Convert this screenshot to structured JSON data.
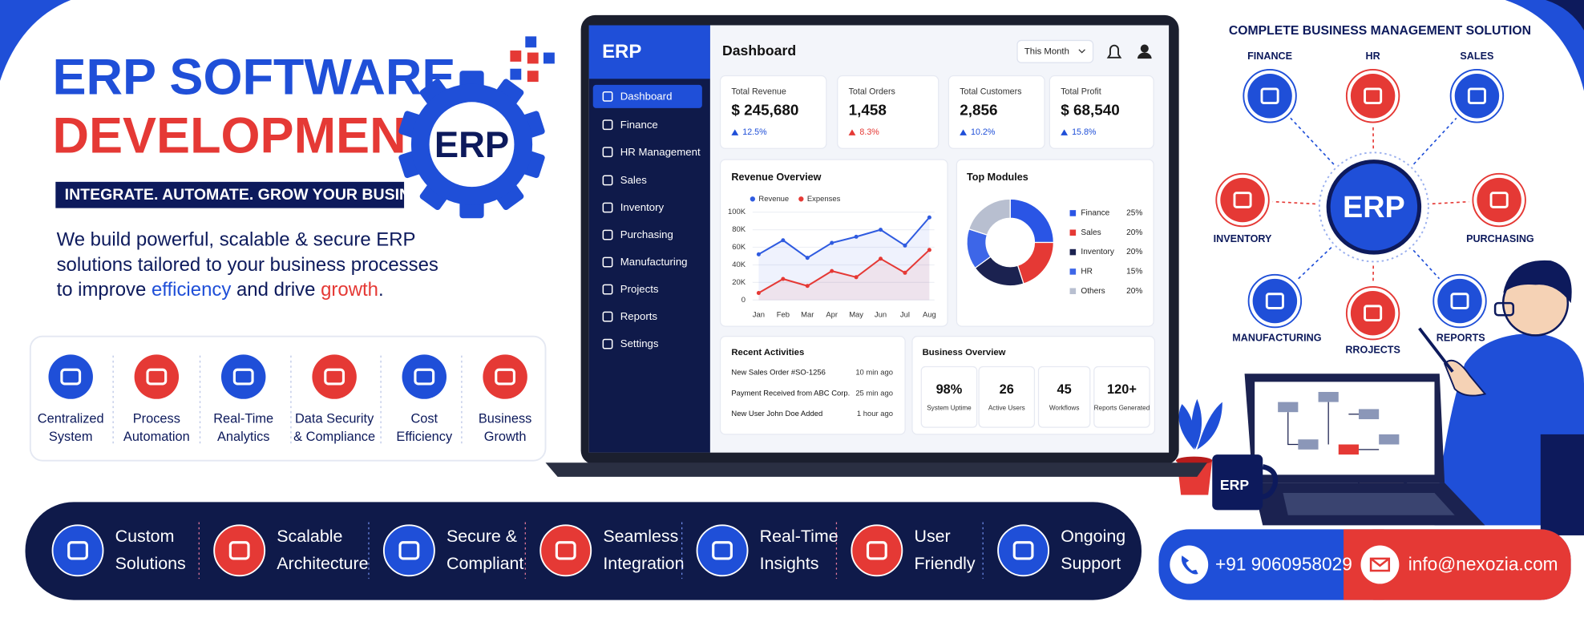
{
  "hero": {
    "title_line1": "ERP SOFTWARE",
    "title_line2": "DEVELOPMENT",
    "tagline": "INTEGRATE. AUTOMATE. GROW YOUR BUSINESS.",
    "logo": "ERP",
    "description": [
      "We build powerful, scalable & secure ERP",
      "solutions tailored to your business processes"
    ],
    "description_last": [
      "to improve ",
      "efficiency",
      " and drive ",
      "growth",
      "."
    ]
  },
  "features": [
    {
      "line1": "Centralized",
      "line2": "System"
    },
    {
      "line1": "Process",
      "line2": "Automation"
    },
    {
      "line1": "Real-Time",
      "line2": "Analytics"
    },
    {
      "line1": "Data Security",
      "line2": "& Compliance"
    },
    {
      "line1": "Cost",
      "line2": "Efficiency"
    },
    {
      "line1": "Business",
      "line2": "Growth"
    }
  ],
  "dashboard": {
    "brand": "ERP",
    "menu": [
      "Dashboard",
      "Finance",
      "HR Management",
      "Sales",
      "Inventory",
      "Purchasing",
      "Manufacturing",
      "Projects",
      "Reports",
      "Settings"
    ],
    "header": "Dashboard",
    "period": "This Month",
    "kpis": [
      {
        "label": "Total Revenue",
        "value": "$ 245,680",
        "change": "12.5%"
      },
      {
        "label": "Total Orders",
        "value": "1,458",
        "change": "8.3%"
      },
      {
        "label": "Total Customers",
        "value": "2,856",
        "change": "10.2%"
      },
      {
        "label": "Total Profit",
        "value": "$ 68,540",
        "change": "15.8%"
      }
    ],
    "revenue_overview": {
      "title": "Revenue Overview",
      "categories": [
        "Jan",
        "Feb",
        "Mar",
        "Apr",
        "May",
        "Jun",
        "Jul",
        "Aug"
      ],
      "series": [
        {
          "name": "Revenue",
          "color": "#2f5be0",
          "values": [
            52,
            68,
            48,
            65,
            72,
            80,
            62,
            94
          ]
        },
        {
          "name": "Expenses",
          "color": "#e53935",
          "values": [
            8,
            24,
            16,
            33,
            26,
            47,
            31,
            57
          ]
        }
      ],
      "ylim": [
        0,
        100
      ],
      "yticks": [
        0,
        {
          "value": 20,
          "label": "20K"
        },
        {
          "value": 40,
          "label": "40K"
        },
        {
          "value": 60,
          "label": "60K"
        },
        {
          "value": 80,
          "label": "80K"
        },
        {
          "value": 100,
          "label": "100K"
        }
      ]
    },
    "top_modules": {
      "title": "Top Modules",
      "items": [
        {
          "name": "Finance",
          "value": 25,
          "label": "25%",
          "color": "#2a55e5"
        },
        {
          "name": "Sales",
          "value": 20,
          "label": "20%",
          "color": "#e53935"
        },
        {
          "name": "Inventory",
          "value": 20,
          "label": "20%",
          "color": "#1b2250"
        },
        {
          "name": "HR",
          "value": 15,
          "label": "15%",
          "color": "#3d66e8"
        },
        {
          "name": "Others",
          "value": 20,
          "label": "20%",
          "color": "#b8bfd0"
        }
      ]
    },
    "recent_activities": {
      "title": "Recent Activities",
      "items": [
        {
          "text": "New Sales Order #SO-1256",
          "time": "10 min ago"
        },
        {
          "text": "Payment Received from ABC Corp.",
          "time": "25 min ago"
        },
        {
          "text": "New User John Doe Added",
          "time": "1 hour ago"
        }
      ]
    },
    "business_overview": {
      "title": "Business Overview",
      "items": [
        {
          "value": "98%",
          "label": "System Uptime"
        },
        {
          "value": "26",
          "label": "Active Users"
        },
        {
          "value": "45",
          "label": "Workflows"
        },
        {
          "value": "120+",
          "label": "Reports Generated"
        }
      ]
    }
  },
  "solution": {
    "title": "COMPLETE BUSINESS MANAGEMENT SOLUTION",
    "hub": "ERP",
    "modules": [
      "FINANCE",
      "HR",
      "SALES",
      "INVENTORY",
      "PURCHASING",
      "MANUFACTURING",
      "RROJECTS",
      "REPORTS"
    ]
  },
  "mug": "ERP",
  "benefits": [
    {
      "line1": "Custom",
      "line2": "Solutions"
    },
    {
      "line1": "Scalable",
      "line2": "Architecture"
    },
    {
      "line1": "Secure &",
      "line2": "Compliant"
    },
    {
      "line1": "Seamless",
      "line2": "Integration"
    },
    {
      "line1": "Real-Time",
      "line2": "Insights"
    },
    {
      "line1": "User",
      "line2": "Friendly"
    },
    {
      "line1": "Ongoing",
      "line2": "Support"
    }
  ],
  "contact": {
    "phone": "+91 9060958029",
    "email": "info@nexozia.com"
  }
}
